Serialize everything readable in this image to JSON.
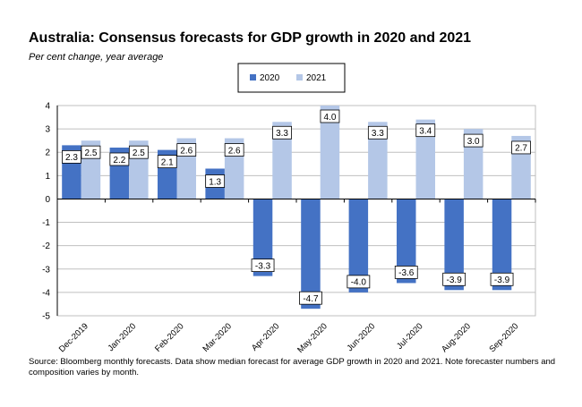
{
  "title": "Australia:  Consensus  forecasts  for GDP growth  in 2020 and 2021",
  "subtitle": "Per cent change, year average",
  "source": "Source: Bloomberg monthly forecasts.  Data show median forecast for average GDP growth in 2020 and 2021.  Note forecaster numbers and composition varies by month.",
  "colors": {
    "s2020": "#4472C4",
    "s2021": "#B4C7E7",
    "grid": "#bfbfbf",
    "axis": "#000000"
  },
  "chart_data": {
    "type": "bar",
    "categories": [
      "Dec-2019",
      "Jan-2020",
      "Feb-2020",
      "Mar-2020",
      "Apr-2020",
      "May-2020",
      "Jun-2020",
      "Jul-2020",
      "Aug-2020",
      "Sep-2020"
    ],
    "series": [
      {
        "name": "2020",
        "values": [
          2.3,
          2.2,
          2.1,
          1.3,
          -3.3,
          -4.7,
          -4.0,
          -3.6,
          -3.9,
          -3.9
        ]
      },
      {
        "name": "2021",
        "values": [
          2.5,
          2.5,
          2.6,
          2.6,
          3.3,
          4.0,
          3.3,
          3.4,
          3.0,
          2.7
        ]
      }
    ],
    "title": "Australia:  Consensus  forecasts  for GDP growth  in 2020 and 2021",
    "ylabel": "",
    "xlabel": "",
    "ylim": [
      -5,
      4
    ],
    "yticks": [
      "4",
      "3",
      "2",
      "1",
      "0",
      "-1",
      "-2",
      "-3",
      "-4",
      "-5"
    ],
    "grid": true,
    "legend_position": "top-center",
    "data_labels": [
      [
        "2.3",
        "2.2",
        "2.1",
        "1.3",
        "-3.3",
        "-4.7",
        "-4.0",
        "-3.6",
        "-3.9",
        "-3.9"
      ],
      [
        "2.5",
        "2.5",
        "2.6",
        "2.6",
        "3.3",
        "4.0",
        "3.3",
        "3.4",
        "3.0",
        "2.7"
      ]
    ]
  }
}
